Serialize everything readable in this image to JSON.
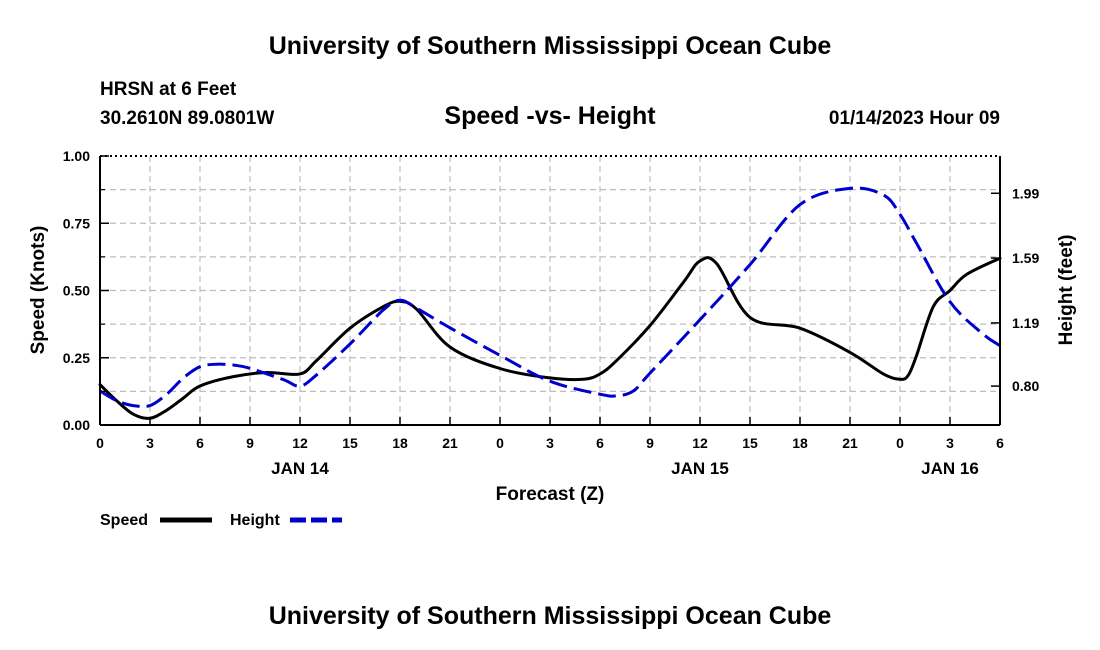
{
  "chart_data": {
    "type": "line",
    "title": "University of Southern Mississippi Ocean Cube",
    "footer_title": "University of Southern Mississippi Ocean Cube",
    "station": "HRSN at 6 Feet",
    "coordinates": "30.2610N  89.0801W",
    "subtitle": "Speed -vs- Height",
    "timestamp": "01/14/2023 Hour 09",
    "xlabel": "Forecast (Z)",
    "ylabel_left": "Speed (Knots)",
    "ylabel_right": "Height (feet)",
    "x_tick_labels": [
      "0",
      "3",
      "6",
      "9",
      "12",
      "15",
      "18",
      "21",
      "0",
      "3",
      "6",
      "9",
      "12",
      "15",
      "18",
      "21",
      "0",
      "3",
      "6"
    ],
    "date_labels": [
      {
        "label": "JAN 14",
        "x_hour": 12
      },
      {
        "label": "JAN 15",
        "x_hour": 36
      },
      {
        "label": "JAN 16",
        "x_hour": 51
      }
    ],
    "xlim": [
      0,
      54
    ],
    "ylim_left": [
      0,
      1
    ],
    "left_ticks": [
      "0.00",
      "0.25",
      "0.50",
      "0.75",
      "1.00"
    ],
    "ylim_right": [
      0.56,
      2.22
    ],
    "right_ticks": [
      {
        "label": "0.80",
        "value": 0.8
      },
      {
        "label": "1.19",
        "value": 1.19
      },
      {
        "label": "1.59",
        "value": 1.59
      },
      {
        "label": "1.99",
        "value": 1.99
      }
    ],
    "grid": true,
    "series": [
      {
        "name": "Speed",
        "axis": "left",
        "color": "#000000",
        "dash": "solid",
        "x": [
          0,
          1,
          2,
          3,
          4,
          5,
          6,
          8,
          10,
          12,
          13,
          15,
          17,
          18,
          19,
          21,
          24,
          27,
          29,
          30,
          31,
          33,
          35,
          36,
          37,
          39,
          42,
          45,
          47,
          48,
          48.5,
          49,
          50,
          51,
          52,
          54
        ],
        "y": [
          0.15,
          0.09,
          0.04,
          0.025,
          0.055,
          0.1,
          0.145,
          0.18,
          0.195,
          0.19,
          0.24,
          0.36,
          0.44,
          0.46,
          0.43,
          0.29,
          0.21,
          0.175,
          0.17,
          0.19,
          0.24,
          0.37,
          0.53,
          0.61,
          0.6,
          0.4,
          0.36,
          0.27,
          0.19,
          0.17,
          0.185,
          0.26,
          0.44,
          0.5,
          0.56,
          0.62
        ]
      },
      {
        "name": "Height",
        "axis": "right",
        "color": "#0000cd",
        "dash": "dashed",
        "x": [
          0,
          1,
          2,
          3,
          4,
          5,
          6,
          7,
          8,
          9,
          11,
          12,
          13,
          15,
          17,
          18,
          19,
          21,
          24,
          27,
          30,
          31,
          32,
          33,
          36,
          39,
          42,
          45,
          47,
          48,
          49,
          51,
          53,
          54
        ],
        "y": [
          0.77,
          0.71,
          0.68,
          0.68,
          0.75,
          0.85,
          0.92,
          0.935,
          0.93,
          0.91,
          0.84,
          0.8,
          0.87,
          1.06,
          1.27,
          1.33,
          1.28,
          1.16,
          0.99,
          0.83,
          0.75,
          0.74,
          0.77,
          0.88,
          1.21,
          1.55,
          1.92,
          2.02,
          1.98,
          1.86,
          1.68,
          1.32,
          1.12,
          1.05
        ]
      }
    ],
    "legend": [
      {
        "label": "Speed",
        "color": "#000000",
        "dash": "solid"
      },
      {
        "label": "Height",
        "color": "#0000cd",
        "dash": "dashed"
      }
    ]
  }
}
